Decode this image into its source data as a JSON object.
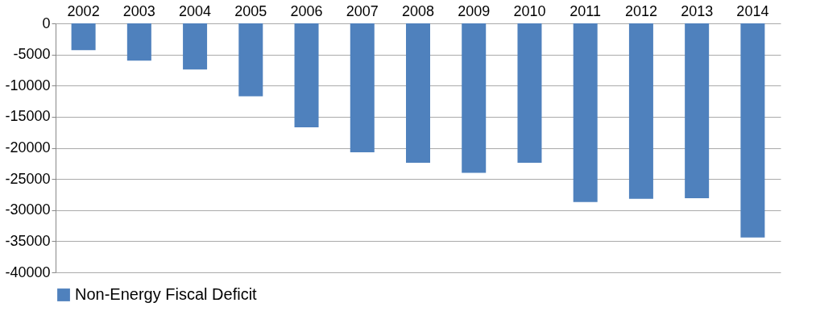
{
  "chart_data": {
    "type": "bar",
    "categories": [
      "2002",
      "2003",
      "2004",
      "2005",
      "2006",
      "2007",
      "2008",
      "2009",
      "2010",
      "2011",
      "2012",
      "2013",
      "2014"
    ],
    "series": [
      {
        "name": "Non-Energy Fiscal Deficit",
        "color": "#4f81bd",
        "values": [
          -4300,
          -6000,
          -7400,
          -11700,
          -16700,
          -20700,
          -22400,
          -24000,
          -22400,
          -28700,
          -28200,
          -28100,
          -34400
        ]
      }
    ],
    "ylim": [
      -40000,
      0
    ],
    "yticks": [
      -40000,
      -35000,
      -30000,
      -25000,
      -20000,
      -15000,
      -10000,
      -5000,
      0
    ],
    "grid": "y",
    "legend": "bottom"
  }
}
